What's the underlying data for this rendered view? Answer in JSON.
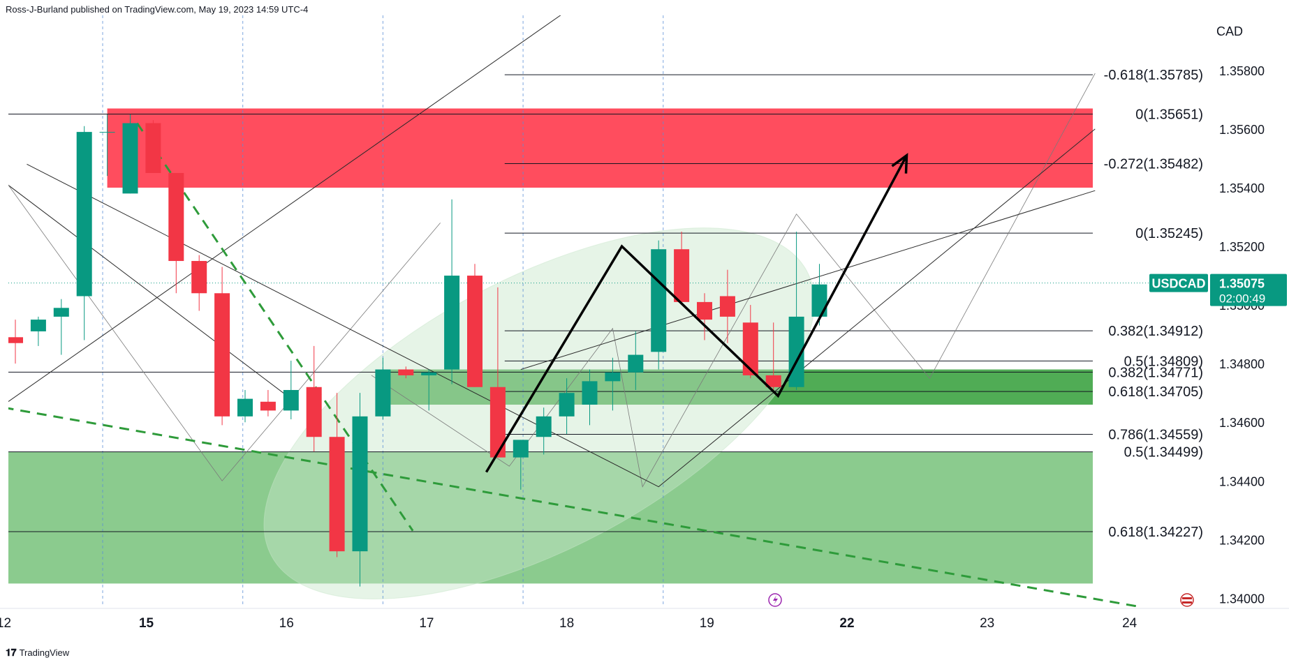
{
  "header": {
    "publisher_text": "Ross-J-Burland published on TradingView.com, May 19, 2023 14:59 UTC-4"
  },
  "footer": {
    "brand": "TradingView",
    "brand_icon": "tradingview-logo-icon"
  },
  "colors": {
    "up": "#089981",
    "down": "#f23645",
    "resistance_zone": "#ff4d5e",
    "support_zone_light": "#8bcb8e",
    "support_zone_dark": "#47a84c",
    "ellipse": "#c8e6c9",
    "trend_green": "#2e9b3a",
    "price_tag": "#089981"
  },
  "chart_data": {
    "type": "candlestick",
    "symbol": "USDCAD",
    "currency": "CAD",
    "last_price": "1.35075",
    "countdown": "02:00:49",
    "ylim": [
      1.3397,
      1.3594
    ],
    "y_ticks": [
      "1.34000",
      "1.34200",
      "1.34400",
      "1.34600",
      "1.34800",
      "1.35000",
      "1.35200",
      "1.35400",
      "1.35600",
      "1.35800"
    ],
    "x_ticks": [
      {
        "label": "12",
        "i": -0.5
      },
      {
        "label": "15",
        "i": 5.7
      },
      {
        "label": "16",
        "i": 11.8
      },
      {
        "label": "17",
        "i": 17.9
      },
      {
        "label": "18",
        "i": 24.0
      },
      {
        "label": "19",
        "i": 30.1
      },
      {
        "label": "22",
        "i": 36.2
      },
      {
        "label": "23",
        "i": 42.3
      },
      {
        "label": "24",
        "i": 48.5
      }
    ],
    "session_separators": [
      3.8,
      9.9,
      16.0,
      22.1,
      28.2
    ],
    "candles": [
      {
        "o": 1.3489,
        "h": 1.3495,
        "l": 1.348,
        "c": 1.3487
      },
      {
        "o": 1.3491,
        "h": 1.3496,
        "l": 1.3486,
        "c": 1.3495
      },
      {
        "o": 1.3496,
        "h": 1.3502,
        "l": 1.3483,
        "c": 1.3499
      },
      {
        "o": 1.3503,
        "h": 1.3561,
        "l": 1.3488,
        "c": 1.3559
      },
      {
        "o": 1.3559,
        "h": 1.3565,
        "l": 1.3544,
        "c": 1.3559
      },
      {
        "o": 1.3538,
        "h": 1.3565,
        "l": 1.3538,
        "c": 1.3562
      },
      {
        "o": 1.3562,
        "h": 1.3563,
        "l": 1.3545,
        "c": 1.3545
      },
      {
        "o": 1.3545,
        "h": 1.3545,
        "l": 1.3504,
        "c": 1.3515
      },
      {
        "o": 1.3515,
        "h": 1.3517,
        "l": 1.3498,
        "c": 1.3504
      },
      {
        "o": 1.3504,
        "h": 1.3513,
        "l": 1.3459,
        "c": 1.3462
      },
      {
        "o": 1.3462,
        "h": 1.3471,
        "l": 1.346,
        "c": 1.3468
      },
      {
        "o": 1.3467,
        "h": 1.3471,
        "l": 1.3462,
        "c": 1.3464
      },
      {
        "o": 1.3464,
        "h": 1.3481,
        "l": 1.3461,
        "c": 1.3471
      },
      {
        "o": 1.3472,
        "h": 1.3486,
        "l": 1.345,
        "c": 1.3455
      },
      {
        "o": 1.3455,
        "h": 1.347,
        "l": 1.3414,
        "c": 1.3416
      },
      {
        "o": 1.3416,
        "h": 1.347,
        "l": 1.3404,
        "c": 1.3462
      },
      {
        "o": 1.3462,
        "h": 1.3482,
        "l": 1.3461,
        "c": 1.3478
      },
      {
        "o": 1.3478,
        "h": 1.3479,
        "l": 1.3475,
        "c": 1.3476
      },
      {
        "o": 1.3476,
        "h": 1.3478,
        "l": 1.3464,
        "c": 1.3477
      },
      {
        "o": 1.3478,
        "h": 1.3536,
        "l": 1.3473,
        "c": 1.351
      },
      {
        "o": 1.351,
        "h": 1.3514,
        "l": 1.3472,
        "c": 1.3472
      },
      {
        "o": 1.3472,
        "h": 1.3506,
        "l": 1.3448,
        "c": 1.3448
      },
      {
        "o": 1.3448,
        "h": 1.3454,
        "l": 1.3437,
        "c": 1.3454
      },
      {
        "o": 1.3455,
        "h": 1.3465,
        "l": 1.3449,
        "c": 1.3462
      },
      {
        "o": 1.3462,
        "h": 1.3475,
        "l": 1.3456,
        "c": 1.347
      },
      {
        "o": 1.3466,
        "h": 1.3478,
        "l": 1.3459,
        "c": 1.3474
      },
      {
        "o": 1.3474,
        "h": 1.3482,
        "l": 1.3464,
        "c": 1.3477
      },
      {
        "o": 1.3477,
        "h": 1.3491,
        "l": 1.3471,
        "c": 1.3483
      },
      {
        "o": 1.3484,
        "h": 1.3522,
        "l": 1.3478,
        "c": 1.3519
      },
      {
        "o": 1.3519,
        "h": 1.3525,
        "l": 1.35,
        "c": 1.3501
      },
      {
        "o": 1.3501,
        "h": 1.3504,
        "l": 1.3488,
        "c": 1.3495
      },
      {
        "o": 1.3503,
        "h": 1.3512,
        "l": 1.3487,
        "c": 1.3496
      },
      {
        "o": 1.3494,
        "h": 1.35,
        "l": 1.3475,
        "c": 1.3476
      },
      {
        "o": 1.3476,
        "h": 1.3494,
        "l": 1.3471,
        "c": 1.3472
      },
      {
        "o": 1.3472,
        "h": 1.3525,
        "l": 1.3471,
        "c": 1.3496
      },
      {
        "o": 1.3496,
        "h": 1.3514,
        "l": 1.3493,
        "c": 1.3507
      }
    ],
    "fib_levels": [
      {
        "label": "-0.618(1.35785)",
        "price": 1.35785,
        "i0": 21.3,
        "i1": 46.9
      },
      {
        "label": "0(1.35651)",
        "price": 1.35651,
        "i0": -0.5,
        "i1": 46.9
      },
      {
        "label": "-0.272(1.35482)",
        "price": 1.35482,
        "i0": 21.3,
        "i1": 46.9
      },
      {
        "label": "0(1.35245)",
        "price": 1.35245,
        "i0": 21.3,
        "i1": 46.9
      },
      {
        "label": "0.382(1.34912)",
        "price": 1.34912,
        "i0": 21.3,
        "i1": 46.9
      },
      {
        "label": "0.5(1.34809)",
        "price": 1.34809,
        "i0": 21.3,
        "i1": 46.9
      },
      {
        "label": "0.382(1.34771)",
        "price": 1.34771,
        "i0": -0.5,
        "i1": 46.9
      },
      {
        "label": "0.618(1.34705)",
        "price": 1.34705,
        "i0": 21.3,
        "i1": 46.9
      },
      {
        "label": "0.786(1.34559)",
        "price": 1.34559,
        "i0": 21.3,
        "i1": 46.9
      },
      {
        "label": "0.5(1.34499)",
        "price": 1.34499,
        "i0": -0.5,
        "i1": 46.9
      },
      {
        "label": "0.618(1.34227)",
        "price": 1.34227,
        "i0": -0.5,
        "i1": 46.9
      }
    ],
    "zones": [
      {
        "name": "resistance",
        "p_top": 1.3567,
        "p_bot": 1.354,
        "i0": 4.0,
        "i1": 46.9
      },
      {
        "name": "support-light",
        "p_top": 1.34499,
        "p_bot": 1.3405,
        "i0": -0.5,
        "i1": 46.9
      },
      {
        "name": "support-dark",
        "p_top": 1.3478,
        "p_bot": 1.3466,
        "i0": 16.0,
        "i1": 46.9
      }
    ],
    "ellipse": {
      "ci": 22.8,
      "cp": 1.3463,
      "ri": 13.2,
      "rp": 0.0046,
      "angle_deg": -28
    },
    "trend_lines": [
      {
        "points": [
          [
            -0.5,
            1.3542
          ],
          [
            12.0,
            1.3468
          ]
        ],
        "style": "thin"
      },
      {
        "points": [
          [
            -0.5,
            1.3466
          ],
          [
            24.5,
            1.3603
          ]
        ],
        "style": "thin"
      },
      {
        "points": [
          [
            -0.5,
            1.3543
          ],
          [
            9.0,
            1.344
          ],
          [
            18.5,
            1.3528
          ]
        ],
        "style": "faint"
      },
      {
        "points": [
          [
            15.5,
            1.3476
          ],
          [
            21.5,
            1.3445
          ],
          [
            26.0,
            1.3492
          ],
          [
            27.3,
            1.3438
          ],
          [
            34.0,
            1.3531
          ],
          [
            39.8,
            1.3475
          ],
          [
            47.0,
            1.3579
          ]
        ],
        "style": "faint"
      },
      {
        "points": [
          [
            0.5,
            1.3548
          ],
          [
            28.0,
            1.3438
          ],
          [
            47.0,
            1.356
          ]
        ],
        "style": "thin"
      },
      {
        "points": [
          [
            22.0,
            1.3478
          ],
          [
            47.0,
            1.3539
          ]
        ],
        "style": "thin"
      }
    ],
    "green_dashed": [
      {
        "points": [
          [
            5.3,
            1.3562
          ],
          [
            17.3,
            1.3423
          ]
        ]
      },
      {
        "points": [
          [
            -0.5,
            1.3465
          ],
          [
            49.0,
            1.3397
          ]
        ]
      }
    ],
    "arrow_path": [
      [
        20.5,
        1.3443
      ],
      [
        26.4,
        1.352
      ],
      [
        33.2,
        1.3469
      ],
      [
        38.8,
        1.3551
      ]
    ]
  }
}
